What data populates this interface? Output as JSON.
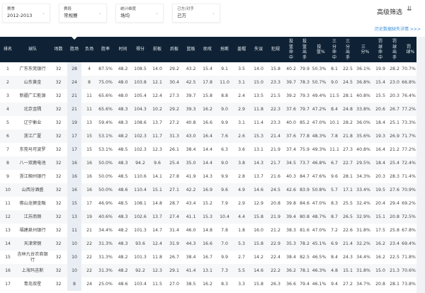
{
  "filters": [
    {
      "label": "赛季",
      "value": "2012-2013"
    },
    {
      "label": "赛段",
      "value": "常规赛"
    },
    {
      "label": "统计维度",
      "value": "场均"
    },
    {
      "label": "己方/对手",
      "value": "己方"
    }
  ],
  "advanced_filter": "高级筛选",
  "history_link": "历史数据缺失详情 >>>",
  "colors": {
    "header_bg": "#0f2235",
    "highlight_col": "#e9eef4",
    "link": "#3f8fd8"
  },
  "columns": [
    "排名",
    "球队",
    "场数",
    "胜场",
    "负场",
    "胜率",
    "时间",
    "得分",
    "前板",
    "后板",
    "篮板",
    "助攻",
    "抢断",
    "盖帽",
    "失误",
    "犯规",
    "投篮命中",
    "投篮出手",
    "投篮%",
    "三分命中",
    "三分出手",
    "三分%",
    "罚球命中",
    "罚球出手",
    "罚球%"
  ],
  "sorted_column": "胜场",
  "rows": [
    [
      "1",
      "广东东莞银行",
      "32",
      "28",
      "4",
      "87.5%",
      "48.2",
      "108.5",
      "14.0",
      "29.2",
      "43.2",
      "15.4",
      "9.1",
      "3.5",
      "14.0",
      "15.8",
      "40.2",
      "79.9",
      "50.3%",
      "8.1",
      "22.5",
      "36.1%",
      "19.9",
      "28.2",
      "70.7%"
    ],
    [
      "2",
      "山东黄金",
      "32",
      "24",
      "8",
      "75.0%",
      "48.0",
      "103.8",
      "12.1",
      "30.4",
      "42.5",
      "17.8",
      "11.0",
      "3.1",
      "15.0",
      "23.3",
      "39.7",
      "78.3",
      "50.7%",
      "9.0",
      "24.5",
      "36.8%",
      "15.4",
      "23.0",
      "66.8%"
    ],
    [
      "3",
      "新疆广汇能源",
      "32",
      "21",
      "11",
      "65.6%",
      "48.0",
      "105.4",
      "12.4",
      "27.3",
      "39.7",
      "15.8",
      "8.8",
      "2.4",
      "13.5",
      "21.5",
      "39.2",
      "79.3",
      "49.4%",
      "11.5",
      "28.1",
      "40.8%",
      "15.5",
      "20.3",
      "76.4%"
    ],
    [
      "4",
      "北京金隅",
      "32",
      "21",
      "11",
      "65.6%",
      "48.3",
      "104.3",
      "10.2",
      "29.2",
      "39.3",
      "16.2",
      "9.0",
      "2.9",
      "11.8",
      "22.3",
      "37.6",
      "79.7",
      "47.2%",
      "8.4",
      "24.8",
      "33.8%",
      "20.6",
      "26.7",
      "77.2%"
    ],
    [
      "5",
      "辽宁衡业",
      "32",
      "19",
      "13",
      "59.4%",
      "48.3",
      "108.6",
      "13.7",
      "27.2",
      "40.8",
      "16.6",
      "9.9",
      "3.1",
      "11.4",
      "23.3",
      "40.0",
      "85.2",
      "47.0%",
      "10.1",
      "28.2",
      "36.0%",
      "18.4",
      "25.1",
      "73.3%"
    ],
    [
      "6",
      "浙江广厦",
      "32",
      "17",
      "15",
      "53.1%",
      "48.2",
      "102.3",
      "11.7",
      "31.3",
      "43.0",
      "16.4",
      "7.6",
      "2.6",
      "15.3",
      "21.4",
      "37.6",
      "77.8",
      "48.3%",
      "7.8",
      "21.8",
      "35.6%",
      "19.3",
      "26.9",
      "71.7%"
    ],
    [
      "7",
      "东莞马可波罗",
      "32",
      "17",
      "15",
      "53.1%",
      "48.5",
      "102.3",
      "12.3",
      "26.1",
      "38.4",
      "14.4",
      "6.3",
      "3.6",
      "13.1",
      "21.9",
      "37.4",
      "75.9",
      "49.3%",
      "11.1",
      "27.3",
      "40.8%",
      "16.4",
      "21.2",
      "77.2%"
    ],
    [
      "8",
      "八一双鹿电池",
      "32",
      "16",
      "16",
      "50.0%",
      "48.3",
      "94.2",
      "9.6",
      "25.4",
      "35.0",
      "14.4",
      "9.0",
      "3.8",
      "14.3",
      "21.7",
      "34.5",
      "73.7",
      "46.8%",
      "6.7",
      "22.7",
      "29.5%",
      "18.4",
      "25.4",
      "72.4%"
    ],
    [
      "9",
      "浙江稠州银行",
      "32",
      "16",
      "16",
      "50.0%",
      "48.5",
      "110.6",
      "14.1",
      "27.8",
      "41.9",
      "14.3",
      "9.9",
      "2.8",
      "13.7",
      "21.6",
      "40.3",
      "84.7",
      "47.6%",
      "9.6",
      "28.1",
      "34.3%",
      "20.3",
      "28.3",
      "71.4%"
    ],
    [
      "10",
      "山西汾酒盛",
      "32",
      "16",
      "16",
      "50.0%",
      "48.6",
      "110.4",
      "15.1",
      "27.1",
      "42.2",
      "16.9",
      "9.6",
      "4.9",
      "14.6",
      "24.5",
      "42.6",
      "83.9",
      "50.8%",
      "5.7",
      "17.1",
      "33.4%",
      "19.5",
      "27.6",
      "70.9%"
    ],
    [
      "11",
      "佛山龙狮金融",
      "32",
      "15",
      "17",
      "46.9%",
      "48.5",
      "108.1",
      "14.8",
      "28.7",
      "43.4",
      "15.2",
      "7.9",
      "2.9",
      "12.9",
      "20.8",
      "39.8",
      "84.6",
      "47.0%",
      "8.3",
      "25.5",
      "32.4%",
      "20.4",
      "29.4",
      "69.2%"
    ],
    [
      "12",
      "江苏南钢",
      "32",
      "13",
      "19",
      "40.6%",
      "48.3",
      "102.6",
      "13.7",
      "27.4",
      "41.1",
      "15.3",
      "10.4",
      "4.4",
      "15.8",
      "21.9",
      "39.4",
      "80.8",
      "48.7%",
      "8.7",
      "26.5",
      "32.9%",
      "15.1",
      "20.8",
      "72.5%"
    ],
    [
      "13",
      "福建泉州银行",
      "32",
      "11",
      "21",
      "34.4%",
      "48.2",
      "101.3",
      "14.7",
      "31.4",
      "46.0",
      "14.8",
      "7.8",
      "1.8",
      "16.0",
      "21.2",
      "38.3",
      "81.6",
      "47.0%",
      "7.2",
      "22.6",
      "31.8%",
      "17.5",
      "25.8",
      "67.8%"
    ],
    [
      "14",
      "天津荣钢",
      "32",
      "10",
      "22",
      "31.3%",
      "48.3",
      "93.6",
      "12.4",
      "31.9",
      "44.3",
      "16.6",
      "7.0",
      "5.3",
      "15.8",
      "22.9",
      "35.3",
      "78.2",
      "45.1%",
      "6.9",
      "21.4",
      "32.2%",
      "16.2",
      "23.4",
      "69.4%"
    ],
    [
      "15",
      "吉林九台农商银行",
      "32",
      "10",
      "22",
      "31.3%",
      "48.2",
      "101.3",
      "11.8",
      "26.7",
      "38.4",
      "16.7",
      "9.9",
      "2.7",
      "14.2",
      "22.4",
      "38.4",
      "82.5",
      "46.5%",
      "8.4",
      "24.3",
      "34.4%",
      "16.2",
      "22.5",
      "71.8%"
    ],
    [
      "16",
      "上海玛吉斯",
      "32",
      "10",
      "22",
      "31.3%",
      "48.2",
      "92.2",
      "12.3",
      "29.1",
      "41.4",
      "13.1",
      "7.3",
      "5.5",
      "14.6",
      "22.2",
      "36.2",
      "78.1",
      "46.3%",
      "4.8",
      "15.1",
      "31.8%",
      "15.0",
      "21.3",
      "70.6%"
    ],
    [
      "17",
      "青岛双星",
      "32",
      "8",
      "24",
      "25.0%",
      "48.6",
      "103.4",
      "11.5",
      "27.0",
      "38.5",
      "16.2",
      "8.3",
      "3.3",
      "15.8",
      "26.3",
      "36.6",
      "79.4",
      "46.1%",
      "9.4",
      "27.2",
      "34.7%",
      "20.8",
      "28.1",
      "73.8%"
    ]
  ]
}
